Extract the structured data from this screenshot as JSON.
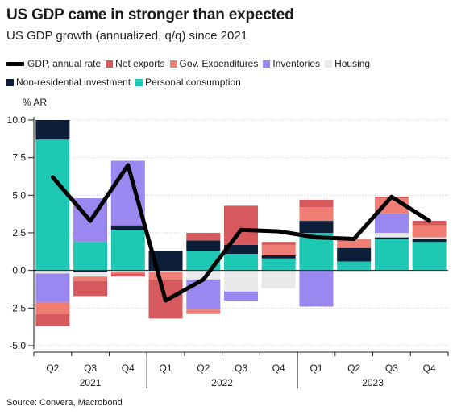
{
  "title": "US GDP came in stronger than expected",
  "subtitle": "US GDP growth (annualized, q/q) since 2021",
  "source": "Source: Convera, Macrobond",
  "chart_data": {
    "type": "bar",
    "stacked": true,
    "unit_label": "% AR",
    "ylim": [
      -5.0,
      10.0
    ],
    "y_ticks": [
      "10.0",
      "7.5",
      "5.0",
      "2.5",
      "0.0",
      "-2.5",
      "-5.0"
    ],
    "y_tick_values": [
      10,
      7.5,
      5,
      2.5,
      0,
      -2.5,
      -5
    ],
    "categories": [
      "Q2",
      "Q3",
      "Q4",
      "Q1",
      "Q2",
      "Q3",
      "Q4",
      "Q1",
      "Q2",
      "Q3",
      "Q4"
    ],
    "years": [
      {
        "label": "2021",
        "start": 0,
        "end": 2
      },
      {
        "label": "2022",
        "start": 3,
        "end": 6
      },
      {
        "label": "2023",
        "start": 7,
        "end": 10
      }
    ],
    "legend_rows": [
      [
        "GDP, annual rate",
        "Net exports",
        "Gov. Expenditures",
        "Inventories",
        "Housing"
      ],
      [
        "Non-residential investment",
        "Personal consumption"
      ]
    ],
    "series": [
      {
        "name": "Personal consumption",
        "color": "#1fc8b5",
        "values": [
          8.7,
          1.9,
          2.7,
          0.0,
          1.3,
          1.1,
          0.8,
          2.5,
          0.6,
          2.1,
          1.9
        ]
      },
      {
        "name": "Non-residential investment",
        "color": "#0d1f38",
        "values": [
          1.3,
          -0.1,
          0.3,
          1.3,
          0.7,
          0.6,
          0.2,
          0.8,
          0.9,
          0.1,
          0.2
        ]
      },
      {
        "name": "Housing",
        "color": "#e9e9e9",
        "values": [
          -0.2,
          -0.3,
          -0.1,
          -0.1,
          -0.6,
          -1.4,
          -1.2,
          0.0,
          -0.1,
          0.3,
          0.1
        ]
      },
      {
        "name": "Inventories",
        "color": "#9b87f0",
        "values": [
          -1.9,
          2.9,
          4.3,
          0.0,
          -2.0,
          -0.6,
          0.0,
          -2.4,
          0.0,
          1.3,
          0.0
        ]
      },
      {
        "name": "Gov. Expenditures",
        "color": "#f07e74",
        "values": [
          -0.8,
          -0.3,
          -0.1,
          -0.5,
          -0.3,
          0.0,
          0.7,
          0.9,
          0.6,
          1.0,
          0.8
        ]
      },
      {
        "name": "Net exports",
        "color": "#d65a5d",
        "values": [
          -0.8,
          -1.0,
          -0.2,
          -2.6,
          0.5,
          2.6,
          0.2,
          0.5,
          0.0,
          0.1,
          0.3
        ]
      }
    ],
    "gdp_line": {
      "name": "GDP, annual rate",
      "color": "#000000",
      "values": [
        6.2,
        3.3,
        7.0,
        -2.0,
        -0.6,
        2.7,
        2.6,
        2.2,
        2.1,
        4.9,
        3.3
      ]
    }
  }
}
